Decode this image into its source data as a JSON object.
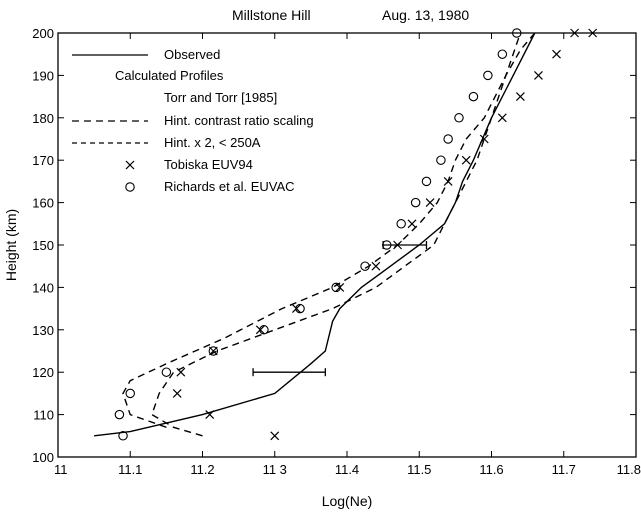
{
  "chart_data": {
    "type": "line",
    "title": {
      "location": "Millstone Hill",
      "date": "Aug. 13, 1980"
    },
    "xlabel": "Log(Ne)",
    "ylabel": "Height (km)",
    "xlim": [
      11,
      11.8
    ],
    "ylim": [
      100,
      200
    ],
    "xticks": [
      11,
      11.1,
      11.2,
      11.3,
      11.4,
      11.5,
      11.6,
      11.7,
      11.8
    ],
    "xtick_labels": [
      "11",
      "11.1",
      "11.2",
      "11 3",
      "11.4",
      "11.5",
      "11.6",
      "11.7",
      "11.8"
    ],
    "yticks": [
      100,
      110,
      120,
      130,
      140,
      150,
      160,
      170,
      180,
      190,
      200
    ],
    "ytick_labels": [
      "100",
      "110",
      "120",
      "130",
      "140",
      "150",
      "160",
      "170",
      "180",
      "190",
      "200"
    ],
    "grid": false,
    "legend_position": "top-left",
    "legend_heading": "Calculated Profiles",
    "series": [
      {
        "name": "Observed",
        "style": "solid",
        "x": [
          11.05,
          11.1,
          11.2,
          11.3,
          11.35,
          11.37,
          11.38,
          11.39,
          11.42,
          11.46,
          11.5,
          11.535,
          11.55,
          11.56,
          11.575,
          11.6,
          11.63,
          11.66
        ],
        "y": [
          105,
          106,
          110,
          115,
          122,
          125,
          132,
          135,
          140,
          145,
          150,
          155,
          160,
          165,
          170,
          180,
          190,
          200
        ]
      },
      {
        "name": "Torr and Torr [1985]",
        "style": "none",
        "x": [],
        "y": []
      },
      {
        "name": "Hint. contrast ratio scaling",
        "style": "dashed",
        "x": [
          11.2,
          11.16,
          11.13,
          11.14,
          11.16,
          11.22,
          11.3,
          11.38,
          11.44,
          11.48,
          11.52,
          11.535,
          11.55,
          11.565,
          11.58,
          11.6,
          11.62,
          11.64,
          11.66
        ],
        "y": [
          105,
          107,
          110,
          115,
          120,
          125,
          130,
          135,
          140,
          145,
          150,
          155,
          160,
          165,
          170,
          180,
          190,
          196,
          200
        ]
      },
      {
        "name": "Hint. x 2, < 250A",
        "style": "dashed",
        "x": [
          11.15,
          11.1,
          11.09,
          11.1,
          11.15,
          11.23,
          11.31,
          11.38,
          11.43,
          11.47,
          11.5,
          11.525,
          11.54,
          11.55,
          11.565,
          11.59,
          11.62,
          11.64
        ],
        "y": [
          107,
          110,
          115,
          118,
          122,
          128,
          135,
          140,
          145,
          150,
          155,
          160,
          165,
          170,
          175,
          180,
          190,
          200
        ]
      },
      {
        "name": "Tobiska EUV94",
        "style": "x-marker",
        "x": [
          11.3,
          11.21,
          11.165,
          11.17,
          11.215,
          11.28,
          11.33,
          11.39,
          11.44,
          11.47,
          11.49,
          11.515,
          11.54,
          11.565,
          11.59,
          11.615,
          11.64,
          11.665,
          11.69,
          11.715,
          11.74
        ],
        "y": [
          105,
          110,
          115,
          120,
          125,
          130,
          135,
          140,
          145,
          150,
          155,
          160,
          165,
          170,
          175,
          180,
          185,
          190,
          195,
          200,
          200
        ]
      },
      {
        "name": "Richards et al. EUVAC",
        "style": "o-marker",
        "x": [
          11.09,
          11.085,
          11.1,
          11.15,
          11.215,
          11.285,
          11.335,
          11.385,
          11.425,
          11.455,
          11.475,
          11.495,
          11.51,
          11.53,
          11.54,
          11.555,
          11.575,
          11.595,
          11.615,
          11.635
        ],
        "y": [
          105,
          110,
          115,
          120,
          125,
          130,
          135,
          140,
          145,
          150,
          155,
          160,
          165,
          170,
          175,
          180,
          185,
          190,
          195,
          200
        ]
      }
    ],
    "error_bars": [
      {
        "y": 120,
        "x_low": 11.27,
        "x_high": 11.37
      },
      {
        "y": 150,
        "x_low": 11.45,
        "x_high": 11.51
      }
    ]
  }
}
